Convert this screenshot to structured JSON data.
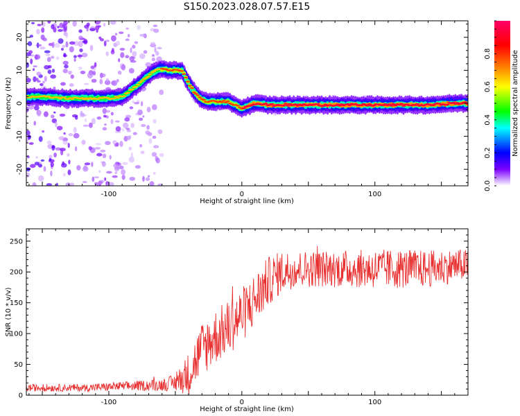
{
  "title": "S150.2023.028.07.57.E15",
  "chart_data": [
    {
      "type": "heatmap",
      "title": "S150.2023.028.07.57.E15",
      "xlabel": "Height of straight line (km)",
      "ylabel": "Frequency (Hz)",
      "xlim": [
        -162,
        170
      ],
      "ylim": [
        -25,
        25
      ],
      "x_ticks": [
        -100,
        0,
        100
      ],
      "y_ticks": [
        -20,
        -10,
        0,
        10,
        20
      ],
      "colorbar": {
        "label": "Normalized spectral amplitude",
        "range": [
          0,
          1
        ],
        "ticks": [
          0.0,
          0.2,
          0.4,
          0.6,
          0.8
        ],
        "colormap": [
          "#ffffff",
          "#7b00ff",
          "#0000ff",
          "#00ffff",
          "#00ff00",
          "#ffff00",
          "#ff8000",
          "#ff0000",
          "#ff0066"
        ]
      },
      "ridge": {
        "x": [
          -162,
          -150,
          -130,
          -110,
          -100,
          -90,
          -80,
          -70,
          -62,
          -55,
          -50,
          -45,
          -40,
          -35,
          -30,
          -25,
          -20,
          -10,
          0,
          10,
          20,
          40,
          60,
          80,
          100,
          120,
          140,
          160,
          170
        ],
        "y": [
          2,
          2,
          1.5,
          1.5,
          1.5,
          2,
          5,
          8.5,
          10.5,
          10,
          10,
          10,
          6,
          3,
          1,
          0.5,
          0.5,
          0.5,
          -1.5,
          0,
          -0.5,
          -0.5,
          -0.5,
          -0.5,
          -0.5,
          -0.5,
          -0.5,
          0,
          0
        ]
      },
      "noise_region_x": [
        -162,
        -60
      ]
    },
    {
      "type": "line",
      "xlabel": "Height of straight line (km)",
      "ylabel": "SNR (10 * v/v)",
      "xlim": [
        -162,
        170
      ],
      "ylim": [
        0,
        270
      ],
      "x_ticks": [
        -100,
        0,
        100
      ],
      "y_ticks": [
        0,
        50,
        100,
        150,
        200,
        250
      ],
      "series": [
        {
          "color": "#e83030",
          "trend_x": [
            -162,
            -120,
            -80,
            -60,
            -50,
            -40,
            -30,
            -20,
            -10,
            0,
            10,
            20,
            30,
            40,
            60,
            80,
            100,
            120,
            140,
            160,
            170
          ],
          "trend_y": [
            12,
            12,
            15,
            17,
            20,
            35,
            75,
            95,
            110,
            130,
            155,
            185,
            200,
            205,
            205,
            205,
            205,
            205,
            205,
            210,
            212
          ],
          "noise_amplitude": [
            6,
            6,
            8,
            10,
            14,
            35,
            45,
            45,
            45,
            45,
            45,
            40,
            35,
            30,
            30,
            30,
            32,
            32,
            30,
            28,
            25
          ]
        }
      ]
    }
  ]
}
